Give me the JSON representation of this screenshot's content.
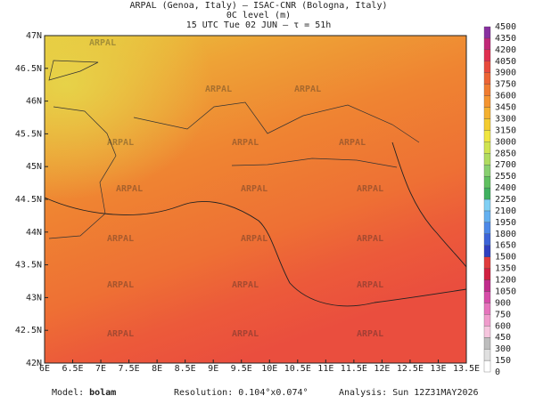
{
  "header": {
    "lines": [
      "ARPAL (Genoa, Italy)  –  ISAC-CNR (Bologna, Italy)",
      "0C level (m)",
      "15 UTC Tue 02 JUN  –  τ = 51h"
    ]
  },
  "map": {
    "lon_labels": [
      "6E",
      "6.5E",
      "7E",
      "7.5E",
      "8E",
      "8.5E",
      "9E",
      "9.5E",
      "10E",
      "10.5E",
      "11E",
      "11.5E",
      "12E",
      "12.5E",
      "13E",
      "13.5E"
    ],
    "lat_labels": [
      "42N",
      "42.5N",
      "43N",
      "43.5N",
      "44N",
      "44.5N",
      "45N",
      "45.5N",
      "46N",
      "46.5N",
      "47N"
    ],
    "watermark": "ARPAL"
  },
  "colorbar": {
    "levels": [
      0,
      150,
      300,
      450,
      600,
      750,
      900,
      1050,
      1200,
      1350,
      1500,
      1650,
      1800,
      1950,
      2100,
      2250,
      2400,
      2550,
      2700,
      2850,
      3000,
      3150,
      3300,
      3450,
      3600,
      3750,
      3900,
      4050,
      4200,
      4350,
      4500
    ],
    "colors": [
      "#ffffff",
      "#e0e0e0",
      "#bdbdbd",
      "#f6c6de",
      "#f09ccc",
      "#e674bc",
      "#d64ca8",
      "#c02c8c",
      "#d02040",
      "#e03c3c",
      "#3040c0",
      "#3c64d8",
      "#4c88e8",
      "#64b0f0",
      "#80d0f4",
      "#40b060",
      "#60c060",
      "#88d070",
      "#b0dc60",
      "#d0e450",
      "#f0e640",
      "#f4cc30",
      "#f4b030",
      "#f49430",
      "#f07c30",
      "#ec6434",
      "#e84a3c",
      "#e03050",
      "#c02878",
      "#8830a0"
    ]
  },
  "footer": {
    "model_label": "Model:",
    "model": "bolam",
    "resolution": "Resolution: 0.104°x0.074°",
    "analysis": "Analysis: Sun 12Z31MAY2026"
  }
}
